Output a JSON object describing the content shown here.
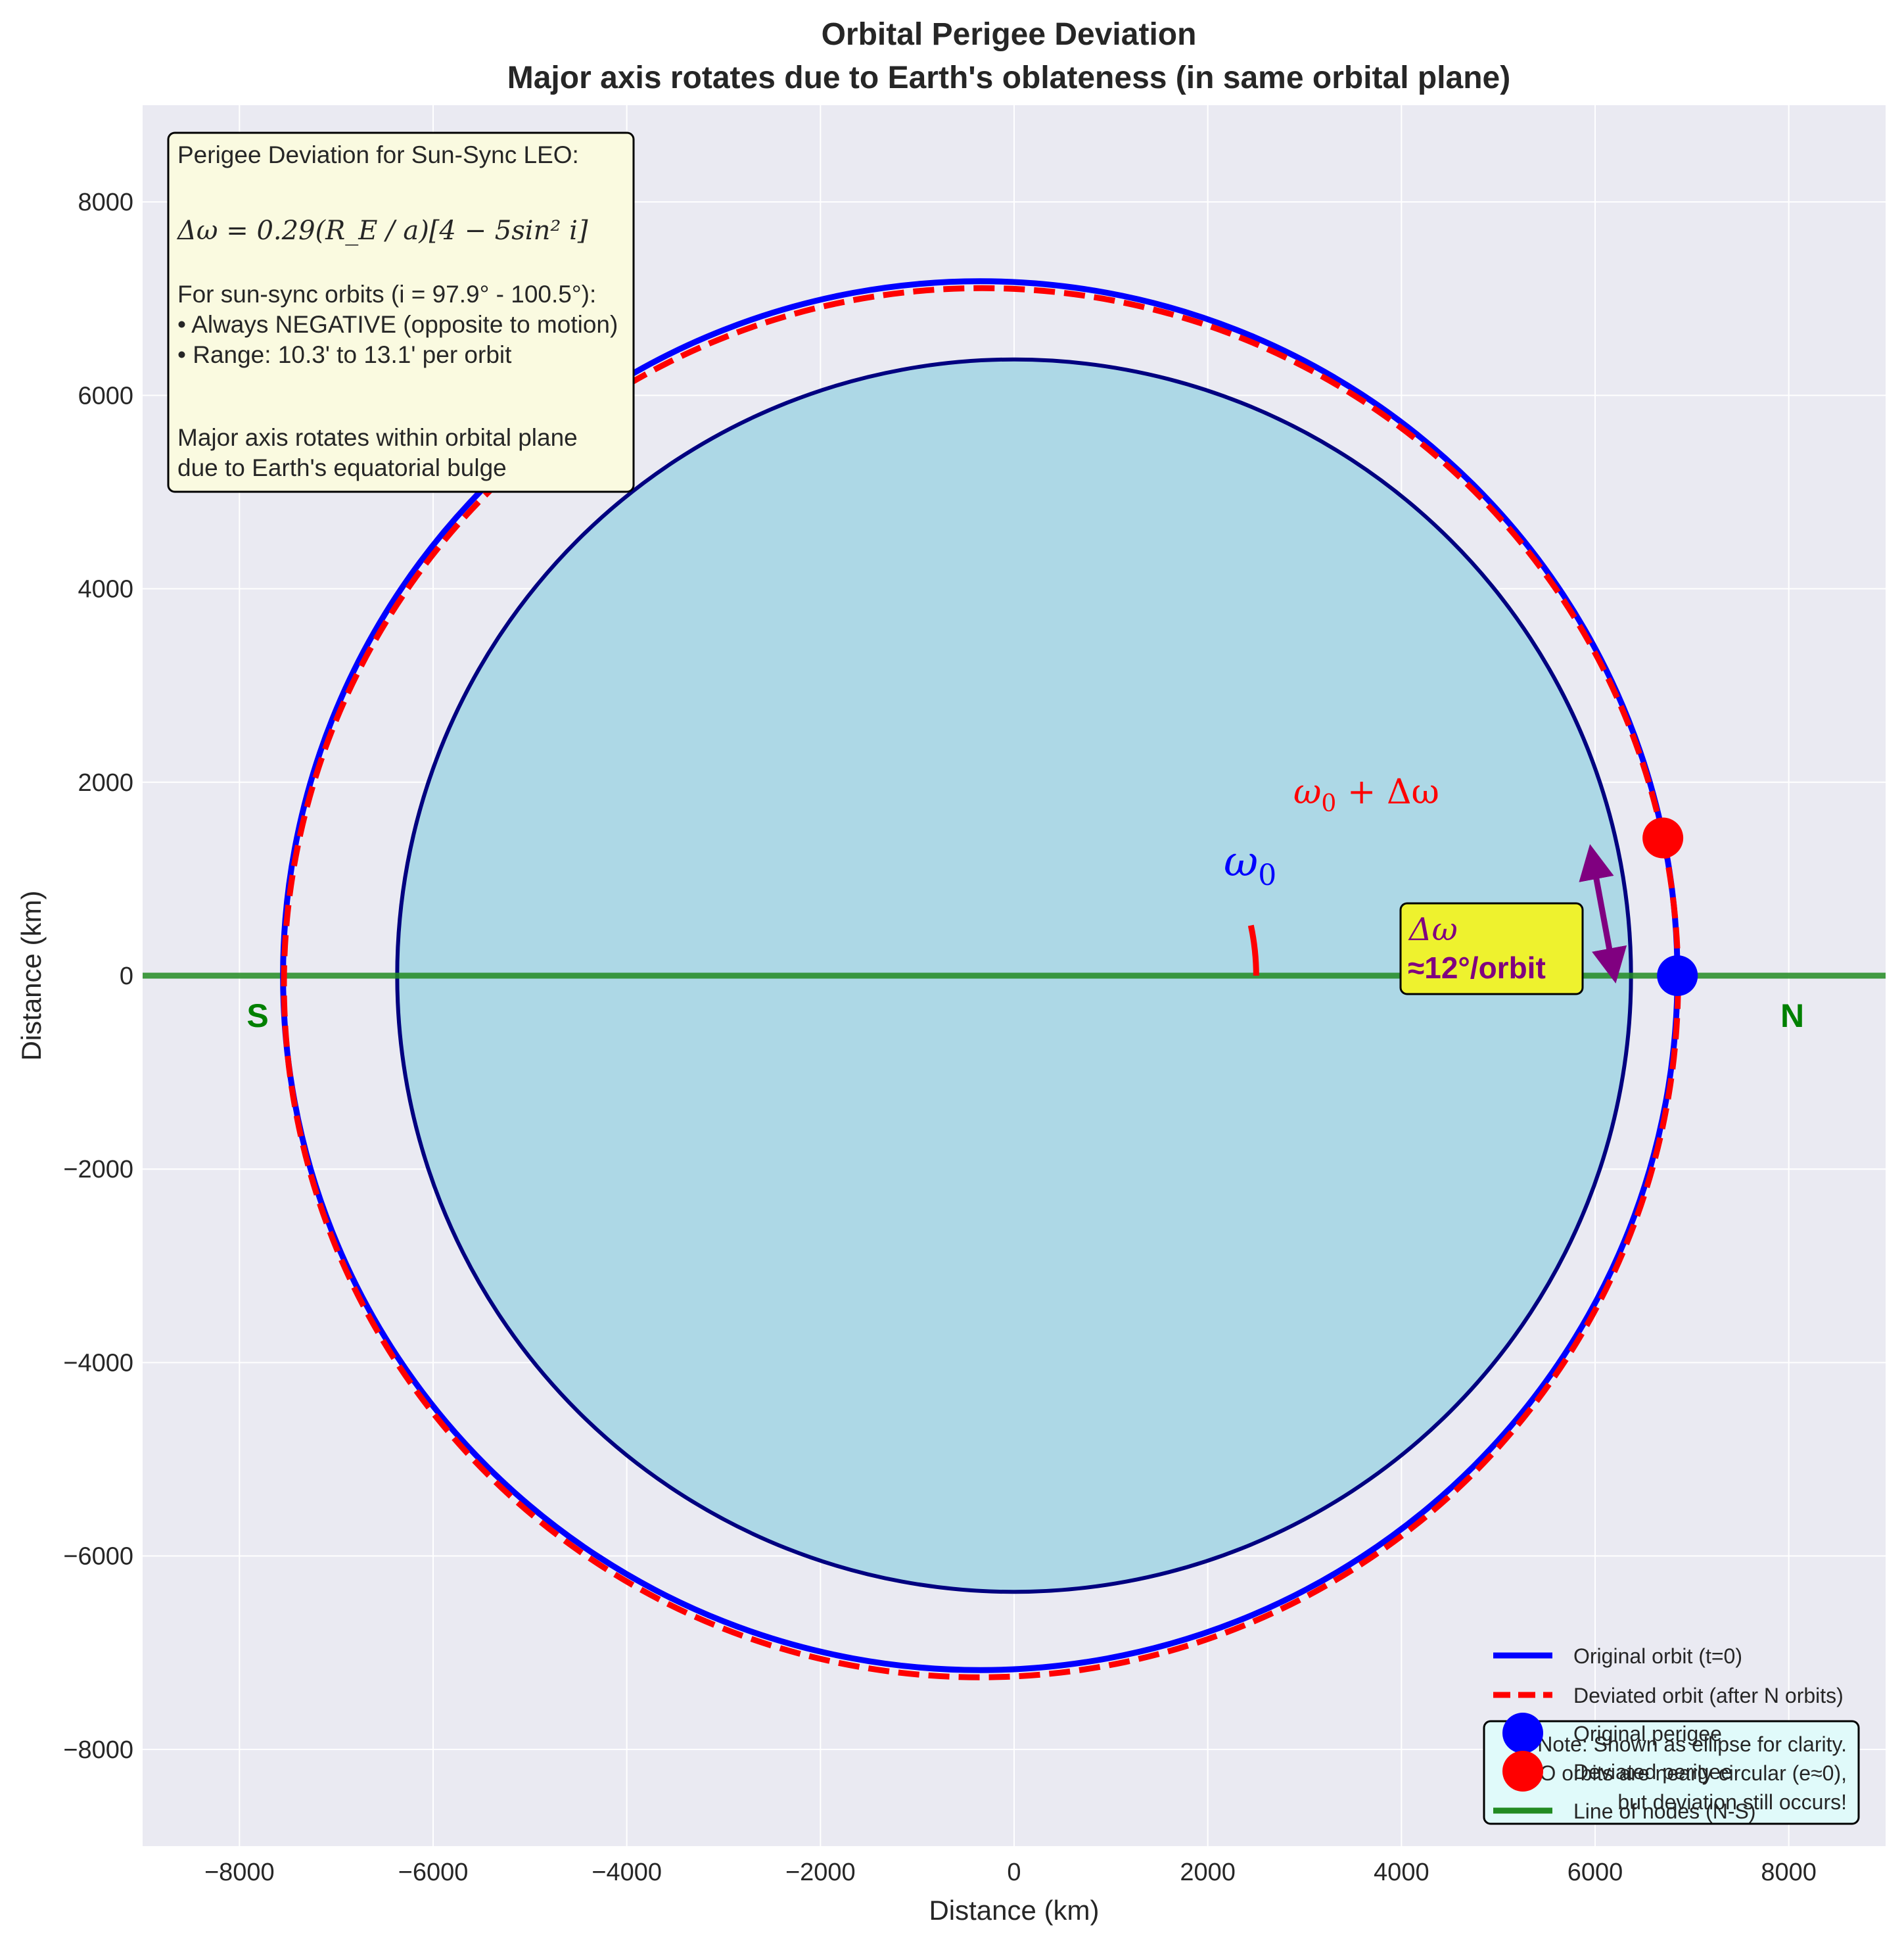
{
  "chart_data": {
    "type": "line",
    "title": "Orbital Perigee Deviation",
    "subtitle": "Major axis rotates due to Earth's oblateness (in same orbital plane)",
    "xlabel": "Distance (km)",
    "ylabel": "Distance (km)",
    "xlim": [
      -9000,
      9000
    ],
    "ylim": [
      -9000,
      9000
    ],
    "xticks": [
      -8000,
      -6000,
      -4000,
      -2000,
      0,
      2000,
      4000,
      6000,
      8000
    ],
    "yticks": [
      -8000,
      -6000,
      -4000,
      -2000,
      0,
      2000,
      4000,
      6000,
      8000
    ],
    "xtick_labels": [
      "−8000",
      "−6000",
      "−4000",
      "−2000",
      "0",
      "2000",
      "4000",
      "6000",
      "8000"
    ],
    "ytick_labels": [
      "−8000",
      "−6000",
      "−4000",
      "−2000",
      "0",
      "2000",
      "4000",
      "6000",
      "8000"
    ],
    "grid": true,
    "legend_position": "lower-right",
    "earth": {
      "radius_km": 6371,
      "fill": "#add8e6",
      "edge": "#000080"
    },
    "series": [
      {
        "name": "Original orbit (t=0)",
        "kind": "ellipse",
        "center": [
          -350,
          0
        ],
        "semi_major": 7200,
        "semi_minor": 7180,
        "rotation_deg": 0,
        "color": "#0000ff",
        "style": "solid"
      },
      {
        "name": "Deviated orbit (after N orbits)",
        "kind": "ellipse",
        "center": [
          -342,
          -73
        ],
        "semi_major": 7200,
        "semi_minor": 7180,
        "rotation_deg": 12,
        "color": "#ff0000",
        "style": "dashed"
      },
      {
        "name": "Original perigee",
        "kind": "point",
        "x": 6850,
        "y": 0,
        "color": "#0000ff"
      },
      {
        "name": "Deviated perigee",
        "kind": "point",
        "x": 6700,
        "y": 1424,
        "color": "#ff0000"
      },
      {
        "name": "Line of nodes (N-S)",
        "kind": "hline",
        "y": 0,
        "color": "#228b22"
      }
    ],
    "annotations": {
      "omega0_label": "ω",
      "omega0_sub": "0",
      "omega_dev_label": "ω",
      "omega_dev_sub": "0",
      "omega_dev_rest": " + Δω",
      "delta_box_line1": "Δω",
      "delta_box_line2": "≈12°/orbit",
      "north_label": "N",
      "south_label": "S"
    },
    "info_box": {
      "heading": "Perigee Deviation for Sun-Sync LEO:",
      "formula": "Δω = 0.29(R_E / a)[4 − 5sin² i]",
      "line1": "For sun-sync orbits (i = 97.9° - 100.5°):",
      "line2": "• Always NEGATIVE (opposite to motion)",
      "line3": "• Range: 10.3' to 13.1' per orbit",
      "line4": "Major axis rotates within orbital plane",
      "line5": "due to Earth's equatorial bulge"
    },
    "note_box": {
      "line1": "Note: Shown as ellipse for clarity.",
      "line2": "LEO orbits are nearly circular (e≈0),",
      "line3": "but deviation still occurs!"
    }
  },
  "colors": {
    "plot_bg": "#eaeaf2",
    "grid": "#ffffff",
    "info_box_bg": "#fafae0",
    "delta_box_bg": "#eef22e",
    "note_box_bg": "#e0fafa",
    "arrow": "#800080"
  }
}
